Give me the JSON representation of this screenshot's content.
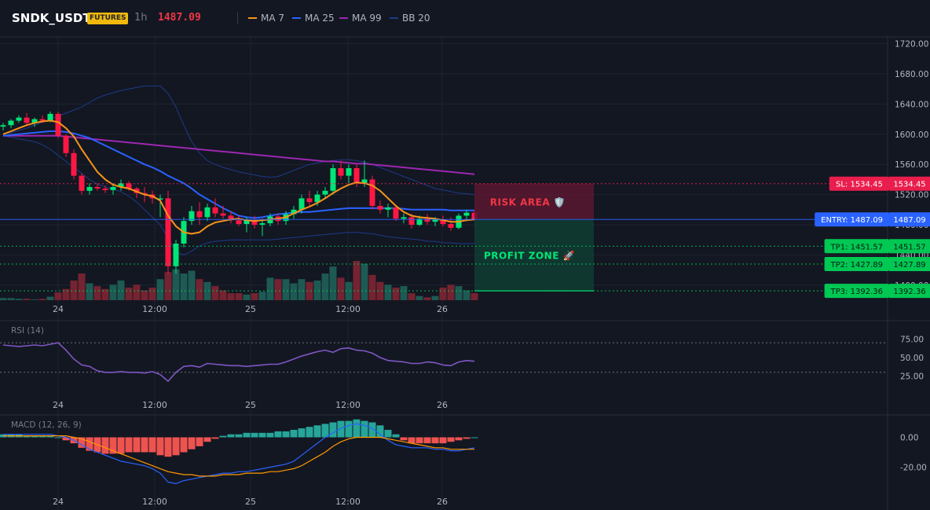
{
  "header": {
    "symbol": "SNDK_USDT",
    "market_badge": "FUTURES",
    "interval": "1h",
    "last_price": "1487.09",
    "legend": [
      {
        "label": "MA 7",
        "color": "#f7931a"
      },
      {
        "label": "MA 25",
        "color": "#2962ff"
      },
      {
        "label": "MA 99",
        "color": "#9c27b0"
      },
      {
        "label": "BB 20",
        "color": "#1e3a8a"
      }
    ]
  },
  "colors": {
    "up": "#26a69a",
    "down": "#f23645",
    "up_candle": "#00e676",
    "down_candle": "#ff1744",
    "entry": "#2962ff",
    "target": "#00c853",
    "stop": "#f23645",
    "rsi": "#7e57c2",
    "macd": "#2962ff",
    "signal": "#ff9800"
  },
  "time_axis": {
    "labels": [
      "24",
      "12:00",
      "25",
      "12:00",
      "26"
    ]
  },
  "chart_data": [
    {
      "type": "candlestick",
      "name": "price",
      "price_ticks": [
        "1720.00",
        "1680.00",
        "1640.00",
        "1600.00",
        "1560.00",
        "1520.00",
        "1480.00",
        "1440.00",
        "1400.00"
      ],
      "ylim": [
        1380,
        1730
      ],
      "bar_count": 61,
      "candles": [
        [
          1610,
          1615,
          1605,
          1612
        ],
        [
          1612,
          1620,
          1608,
          1618
        ],
        [
          1618,
          1625,
          1615,
          1622
        ],
        [
          1622,
          1628,
          1612,
          1615
        ],
        [
          1615,
          1622,
          1610,
          1620
        ],
        [
          1620,
          1625,
          1615,
          1618
        ],
        [
          1618,
          1630,
          1616,
          1627
        ],
        [
          1627,
          1630,
          1595,
          1598
        ],
        [
          1598,
          1600,
          1570,
          1575
        ],
        [
          1575,
          1580,
          1540,
          1545
        ],
        [
          1545,
          1548,
          1520,
          1525
        ],
        [
          1525,
          1535,
          1520,
          1530
        ],
        [
          1530,
          1535,
          1525,
          1528
        ],
        [
          1528,
          1532,
          1522,
          1526
        ],
        [
          1526,
          1535,
          1520,
          1530
        ],
        [
          1530,
          1540,
          1525,
          1535
        ],
        [
          1535,
          1538,
          1525,
          1528
        ],
        [
          1528,
          1530,
          1515,
          1522
        ],
        [
          1522,
          1530,
          1510,
          1520
        ],
        [
          1520,
          1525,
          1508,
          1515
        ],
        [
          1515,
          1520,
          1490,
          1515
        ],
        [
          1515,
          1525,
          1415,
          1425
        ],
        [
          1425,
          1460,
          1415,
          1455
        ],
        [
          1455,
          1490,
          1450,
          1485
        ],
        [
          1485,
          1505,
          1480,
          1498
        ],
        [
          1498,
          1510,
          1480,
          1490
        ],
        [
          1490,
          1508,
          1485,
          1503
        ],
        [
          1503,
          1515,
          1490,
          1495
        ],
        [
          1495,
          1505,
          1488,
          1492
        ],
        [
          1492,
          1498,
          1482,
          1486
        ],
        [
          1486,
          1492,
          1478,
          1481
        ],
        [
          1481,
          1490,
          1470,
          1486
        ],
        [
          1486,
          1492,
          1475,
          1480
        ],
        [
          1480,
          1488,
          1465,
          1482
        ],
        [
          1482,
          1495,
          1478,
          1491
        ],
        [
          1491,
          1495,
          1480,
          1485
        ],
        [
          1485,
          1498,
          1480,
          1494
        ],
        [
          1494,
          1505,
          1488,
          1500
        ],
        [
          1500,
          1520,
          1495,
          1515
        ],
        [
          1515,
          1525,
          1505,
          1510
        ],
        [
          1510,
          1525,
          1505,
          1520
        ],
        [
          1520,
          1530,
          1515,
          1525
        ],
        [
          1525,
          1560,
          1520,
          1555
        ],
        [
          1555,
          1565,
          1540,
          1545
        ],
        [
          1545,
          1560,
          1535,
          1555
        ],
        [
          1555,
          1560,
          1530,
          1535
        ],
        [
          1535,
          1565,
          1530,
          1540
        ],
        [
          1540,
          1545,
          1500,
          1505
        ],
        [
          1505,
          1512,
          1495,
          1500
        ],
        [
          1500,
          1508,
          1490,
          1503
        ],
        [
          1503,
          1506,
          1485,
          1488
        ],
        [
          1488,
          1495,
          1482,
          1490
        ],
        [
          1490,
          1495,
          1475,
          1480
        ],
        [
          1480,
          1492,
          1478,
          1488
        ],
        [
          1488,
          1494,
          1480,
          1484
        ],
        [
          1484,
          1490,
          1478,
          1487
        ],
        [
          1487,
          1492,
          1478,
          1481
        ],
        [
          1481,
          1490,
          1472,
          1476
        ],
        [
          1476,
          1495,
          1474,
          1492
        ],
        [
          1492,
          1500,
          1486,
          1496
        ],
        [
          1496,
          1500,
          1485,
          1487
        ]
      ],
      "volume": [
        3,
        3,
        2,
        2,
        1,
        2,
        5,
        11,
        16,
        28,
        38,
        24,
        20,
        16,
        22,
        28,
        18,
        22,
        14,
        18,
        30,
        40,
        44,
        38,
        42,
        30,
        26,
        20,
        14,
        10,
        10,
        8,
        10,
        12,
        32,
        30,
        30,
        24,
        30,
        26,
        28,
        38,
        48,
        32,
        26,
        56,
        52,
        36,
        26,
        22,
        18,
        20,
        10,
        6,
        4,
        6,
        18,
        22,
        20,
        14,
        10
      ],
      "ma7": [
        1600,
        1604,
        1608,
        1612,
        1615,
        1617,
        1618,
        1616,
        1608,
        1597,
        1580,
        1565,
        1550,
        1540,
        1533,
        1530,
        1528,
        1524,
        1520,
        1518,
        1512,
        1492,
        1478,
        1470,
        1468,
        1470,
        1478,
        1483,
        1485,
        1487,
        1488,
        1486,
        1485,
        1486,
        1487,
        1488,
        1490,
        1495,
        1500,
        1504,
        1509,
        1515,
        1522,
        1528,
        1533,
        1536,
        1535,
        1532,
        1525,
        1515,
        1505,
        1497,
        1492,
        1490,
        1489,
        1488,
        1486,
        1484,
        1484,
        1486,
        1487
      ],
      "ma25": [
        1598,
        1599,
        1600,
        1601,
        1602,
        1603,
        1604,
        1604,
        1603,
        1601,
        1598,
        1595,
        1590,
        1585,
        1580,
        1575,
        1570,
        1565,
        1560,
        1556,
        1551,
        1545,
        1540,
        1535,
        1528,
        1520,
        1514,
        1508,
        1502,
        1497,
        1492,
        1490,
        1489,
        1490,
        1492,
        1494,
        1495,
        1496,
        1497,
        1497,
        1498,
        1499,
        1500,
        1501,
        1502,
        1502,
        1502,
        1502,
        1502,
        1502,
        1502,
        1501,
        1500,
        1500,
        1500,
        1500,
        1500,
        1499,
        1499,
        1499,
        1499
      ],
      "ma99": [
        1598,
        1598,
        1598,
        1598,
        1598,
        1598,
        1598,
        1598,
        1597,
        1596,
        1595,
        1594,
        1593,
        1592,
        1591,
        1590,
        1589,
        1588,
        1587,
        1586,
        1585,
        1584,
        1583,
        1582,
        1581,
        1580,
        1579,
        1578,
        1577,
        1576,
        1575,
        1574,
        1573,
        1572,
        1571,
        1570,
        1569,
        1568,
        1567,
        1566,
        1565,
        1564,
        1564,
        1563,
        1562,
        1561,
        1561,
        1560,
        1559,
        1558,
        1557,
        1556,
        1555,
        1554,
        1553,
        1552,
        1551,
        1550,
        1549,
        1548,
        1547
      ],
      "bb_upper": [
        1600,
        1602,
        1605,
        1608,
        1612,
        1616,
        1620,
        1624,
        1628,
        1632,
        1636,
        1642,
        1648,
        1652,
        1655,
        1658,
        1660,
        1662,
        1664,
        1664,
        1664,
        1654,
        1636,
        1612,
        1590,
        1575,
        1565,
        1560,
        1556,
        1553,
        1550,
        1548,
        1546,
        1544,
        1543,
        1544,
        1548,
        1552,
        1556,
        1560,
        1562,
        1564,
        1565,
        1566,
        1566,
        1565,
        1563,
        1560,
        1556,
        1552,
        1548,
        1544,
        1540,
        1536,
        1532,
        1528,
        1526,
        1524,
        1522,
        1521,
        1520
      ],
      "bb_lower": [
        1598,
        1596,
        1594,
        1592,
        1590,
        1586,
        1580,
        1572,
        1564,
        1556,
        1548,
        1540,
        1534,
        1530,
        1527,
        1524,
        1518,
        1510,
        1500,
        1490,
        1480,
        1462,
        1444,
        1440,
        1445,
        1452,
        1456,
        1458,
        1459,
        1460,
        1460,
        1460,
        1460,
        1460,
        1460,
        1461,
        1462,
        1463,
        1464,
        1465,
        1466,
        1467,
        1468,
        1469,
        1470,
        1470,
        1469,
        1468,
        1466,
        1464,
        1463,
        1462,
        1461,
        1460,
        1458,
        1458,
        1456,
        1456,
        1455,
        1455,
        1455
      ]
    },
    {
      "type": "line",
      "name": "RSI (14)",
      "ylim": [
        0,
        100
      ],
      "ticks": [
        "75.00",
        "50.00",
        "25.00"
      ],
      "levels": [
        70,
        30
      ],
      "values": [
        67,
        66,
        65,
        66,
        67,
        66,
        68,
        70,
        60,
        48,
        40,
        38,
        32,
        30,
        30,
        31,
        30,
        30,
        29,
        31,
        27,
        18,
        30,
        38,
        39,
        37,
        42,
        41,
        40,
        39,
        39,
        38,
        39,
        40,
        41,
        41,
        44,
        48,
        52,
        55,
        58,
        60,
        57,
        62,
        63,
        60,
        59,
        56,
        50,
        46,
        45,
        44,
        42,
        42,
        44,
        43,
        40,
        39,
        44,
        46,
        45
      ]
    },
    {
      "type": "bar",
      "name": "MACD (12, 26, 9)",
      "ylim": [
        -35,
        15
      ],
      "ticks": [
        "0.00",
        "-20.00"
      ],
      "histogram": [
        2,
        2,
        2,
        1,
        1,
        1,
        1,
        0,
        -2,
        -4,
        -7,
        -9,
        -10,
        -11,
        -11,
        -11,
        -10,
        -10,
        -10,
        -10,
        -12,
        -13,
        -12,
        -10,
        -8,
        -6,
        -3,
        -1,
        1,
        2,
        2,
        3,
        3,
        3,
        3,
        4,
        4,
        5,
        6,
        7,
        8,
        9,
        10,
        11,
        11,
        12,
        11,
        10,
        8,
        5,
        2,
        -2,
        -4,
        -4,
        -4,
        -4,
        -4,
        -3,
        -2,
        -1,
        0
      ],
      "macd": [
        2,
        2,
        2,
        2,
        2,
        2,
        2,
        1,
        0,
        -2,
        -5,
        -8,
        -10,
        -12,
        -14,
        -16,
        -17,
        -18,
        -19,
        -21,
        -24,
        -30,
        -31,
        -29,
        -28,
        -27,
        -26,
        -25,
        -24,
        -24,
        -23,
        -23,
        -22,
        -21,
        -20,
        -19,
        -18,
        -16,
        -12,
        -8,
        -4,
        0,
        3,
        6,
        8,
        9,
        8,
        6,
        2,
        -2,
        -5,
        -6,
        -7,
        -7,
        -7,
        -8,
        -8,
        -9,
        -9,
        -8,
        -7
      ],
      "signal": [
        1,
        1,
        1,
        1,
        1,
        1,
        1,
        1,
        1,
        0,
        -1,
        -3,
        -5,
        -7,
        -9,
        -11,
        -13,
        -15,
        -17,
        -19,
        -21,
        -23,
        -24,
        -25,
        -25,
        -26,
        -26,
        -26,
        -25,
        -25,
        -25,
        -24,
        -24,
        -24,
        -23,
        -23,
        -22,
        -21,
        -19,
        -16,
        -13,
        -10,
        -6,
        -3,
        -1,
        0,
        0,
        0,
        0,
        -1,
        -2,
        -3,
        -4,
        -5,
        -6,
        -7,
        -7,
        -8,
        -8,
        -8,
        -8
      ]
    }
  ],
  "trade": {
    "stop_loss": {
      "label": "SL: 1534.45",
      "price": 1534.45,
      "axis_label": "1534.45"
    },
    "entry": {
      "label": "ENTRY: 1487.09",
      "price": 1487.09,
      "axis_label": "1487.09"
    },
    "targets": [
      {
        "label": "TP1: 1451.57",
        "price": 1451.57,
        "axis_label": "1451.57"
      },
      {
        "label": "TP2: 1427.89",
        "price": 1427.89,
        "axis_label": "1427.89"
      },
      {
        "label": "TP3: 1392.36",
        "price": 1392.36,
        "axis_label": "1392.36"
      }
    ],
    "risk_label": "RISK AREA 🛡️",
    "profit_label": "PROFIT ZONE 🚀"
  }
}
